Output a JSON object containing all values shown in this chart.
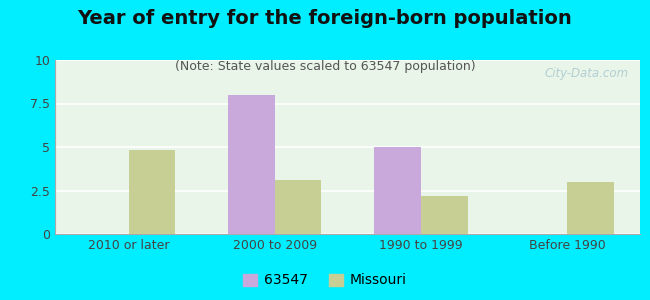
{
  "title": "Year of entry for the foreign-born population",
  "subtitle": "(Note: State values scaled to 63547 population)",
  "categories": [
    "2010 or later",
    "2000 to 2009",
    "1990 to 1999",
    "Before 1990"
  ],
  "values_63547": [
    0,
    8.0,
    5.0,
    0
  ],
  "values_missouri": [
    4.8,
    3.1,
    2.2,
    3.0
  ],
  "color_63547": "#c9a8dc",
  "color_missouri": "#c8cf94",
  "background_outer": "#00eeff",
  "background_inner": "#e8f5e8",
  "ylim": [
    0,
    10
  ],
  "yticks": [
    0,
    2.5,
    5,
    7.5,
    10
  ],
  "bar_width": 0.32,
  "legend_label_63547": "63547",
  "legend_label_missouri": "Missouri",
  "title_fontsize": 14,
  "subtitle_fontsize": 9,
  "tick_fontsize": 9,
  "legend_fontsize": 10,
  "watermark": "City-Data.com"
}
